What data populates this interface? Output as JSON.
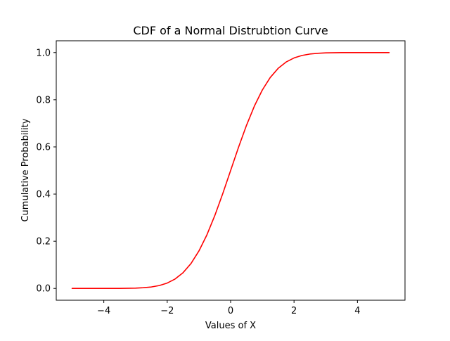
{
  "chart_data": {
    "type": "line",
    "title": "CDF of a Normal Distrubtion Curve",
    "xlabel": "Values of X",
    "ylabel": "Cumulative Probability",
    "xlim": [
      -5.5,
      5.5
    ],
    "ylim": [
      -0.05,
      1.05
    ],
    "xticks": [
      -4,
      -2,
      0,
      2,
      4
    ],
    "xtick_labels": [
      "−4",
      "−2",
      "0",
      "2",
      "4"
    ],
    "yticks": [
      0.0,
      0.2,
      0.4,
      0.6,
      0.8,
      1.0
    ],
    "ytick_labels": [
      "0.0",
      "0.2",
      "0.4",
      "0.6",
      "0.8",
      "1.0"
    ],
    "grid": false,
    "series": [
      {
        "color": "#ff0000",
        "x": [
          -5.0,
          -4.5,
          -4.0,
          -3.5,
          -3.0,
          -2.75,
          -2.5,
          -2.25,
          -2.0,
          -1.75,
          -1.5,
          -1.25,
          -1.0,
          -0.75,
          -0.5,
          -0.25,
          0.0,
          0.25,
          0.5,
          0.75,
          1.0,
          1.25,
          1.5,
          1.75,
          2.0,
          2.25,
          2.5,
          2.75,
          3.0,
          3.5,
          4.0,
          4.5,
          5.0
        ],
        "y": [
          0.0,
          0.0,
          0.0,
          0.0002,
          0.0013,
          0.003,
          0.0062,
          0.0122,
          0.0228,
          0.0401,
          0.0668,
          0.1056,
          0.1587,
          0.2266,
          0.3085,
          0.4013,
          0.5,
          0.5987,
          0.6915,
          0.7734,
          0.8413,
          0.8944,
          0.9332,
          0.9599,
          0.9772,
          0.9878,
          0.9938,
          0.997,
          0.9987,
          0.9998,
          1.0,
          1.0,
          1.0
        ]
      }
    ]
  }
}
